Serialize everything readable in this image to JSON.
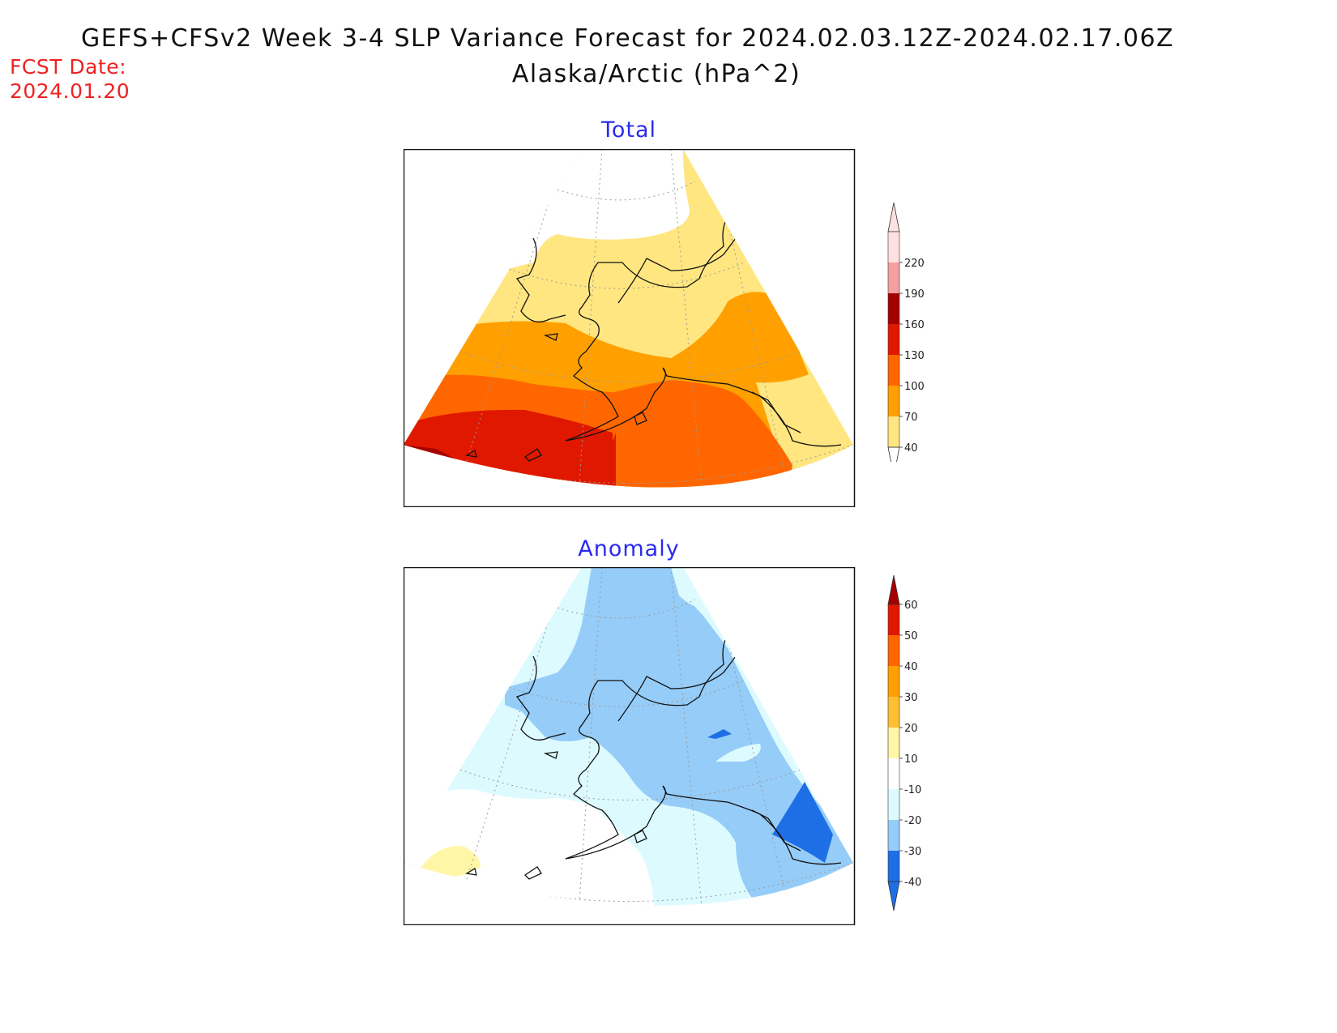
{
  "header": {
    "title": "GEFS+CFSv2 Week 3-4 SLP Variance Forecast for 2024.02.03.12Z-2024.02.17.06Z",
    "subtitle": "Alaska/Arctic (hPa^2)",
    "fcst_date_label": "FCST Date:",
    "fcst_date_value": "2024.01.20"
  },
  "panels": [
    {
      "id": "total",
      "title": "Total",
      "colorbar": {
        "levels": [
          "40",
          "70",
          "100",
          "130",
          "160",
          "190",
          "220"
        ],
        "colors": [
          "#ffe680",
          "#ffa000",
          "#ff6600",
          "#e01800",
          "#a50000",
          "#f4a0a0",
          "#ffe0e0"
        ],
        "top_arrow_color": "#ffe0e0",
        "bottom_arrow_color": "#ffffff"
      }
    },
    {
      "id": "anomaly",
      "title": "Anomaly",
      "colorbar": {
        "levels": [
          "-40",
          "-30",
          "-20",
          "-10",
          "10",
          "20",
          "30",
          "40",
          "50",
          "60"
        ],
        "colors": [
          "#1e6fe6",
          "#96ccf8",
          "#ddfbff",
          "#ffffff",
          "#fff6a8",
          "#ffbf33",
          "#ffa000",
          "#ff6600",
          "#e01800"
        ],
        "top_arrow_color": "#a50000",
        "bottom_arrow_color": "#1e6fe6"
      }
    }
  ]
}
